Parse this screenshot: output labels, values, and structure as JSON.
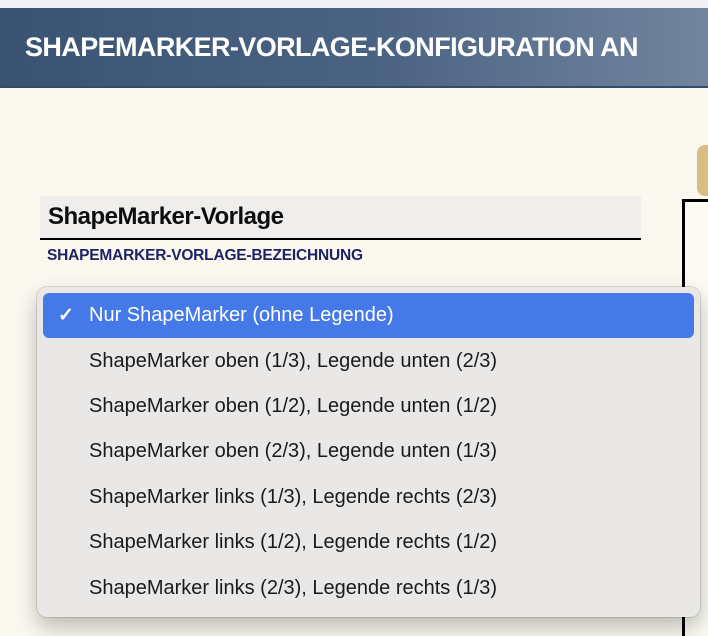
{
  "header": {
    "title": "SHAPEMARKER-VORLAGE-KONFIGURATION AN"
  },
  "form": {
    "field_value": "ShapeMarker-Vorlage",
    "field_label": "SHAPEMARKER-VORLAGE-BEZEICHNUNG"
  },
  "dropdown": {
    "checkmark": "✓",
    "items": [
      {
        "label": "Nur ShapeMarker (ohne Legende)",
        "selected": true
      },
      {
        "label": "ShapeMarker oben (1/3), Legende unten (2/3)",
        "selected": false
      },
      {
        "label": "ShapeMarker oben (1/2), Legende unten (1/2)",
        "selected": false
      },
      {
        "label": "ShapeMarker oben (2/3), Legende unten (1/3)",
        "selected": false
      },
      {
        "label": "ShapeMarker links (1/3), Legende rechts (2/3)",
        "selected": false
      },
      {
        "label": "ShapeMarker links (1/2), Legende rechts (1/2)",
        "selected": false
      },
      {
        "label": "ShapeMarker links (2/3), Legende rechts (1/3)",
        "selected": false
      }
    ]
  },
  "colors": {
    "header_gradient_left": "#3a5372",
    "header_gradient_right": "#72859f",
    "selection_blue": "#4679e8",
    "accent_tan": "#d8be85",
    "label_navy": "#1d2365",
    "body_cream": "#faf8ef",
    "menu_gray": "#e9e8e6"
  }
}
